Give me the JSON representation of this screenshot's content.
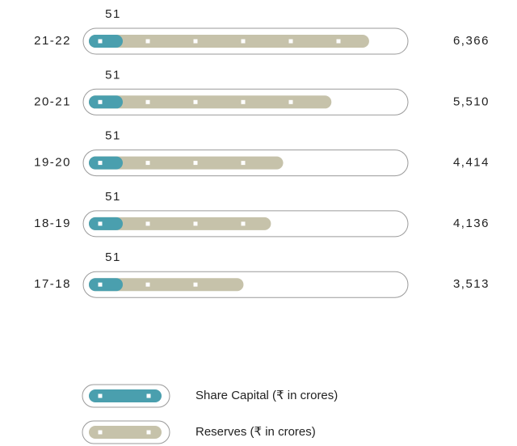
{
  "chart_data": {
    "type": "bar",
    "categories": [
      "21-22",
      "20-21",
      "19-20",
      "18-19",
      "17-18"
    ],
    "series": [
      {
        "name": "Share Capital (₹ in crores)",
        "color": "#4a9fae",
        "values": [
          51,
          51,
          51,
          51,
          51
        ]
      },
      {
        "name": "Reserves (₹ in crores)",
        "color": "#c6c2aa",
        "values": [
          6366,
          5510,
          4414,
          4136,
          3513
        ],
        "value_labels": [
          "6,366",
          "5,510",
          "4,414",
          "4,136",
          "3,513"
        ]
      }
    ]
  }
}
